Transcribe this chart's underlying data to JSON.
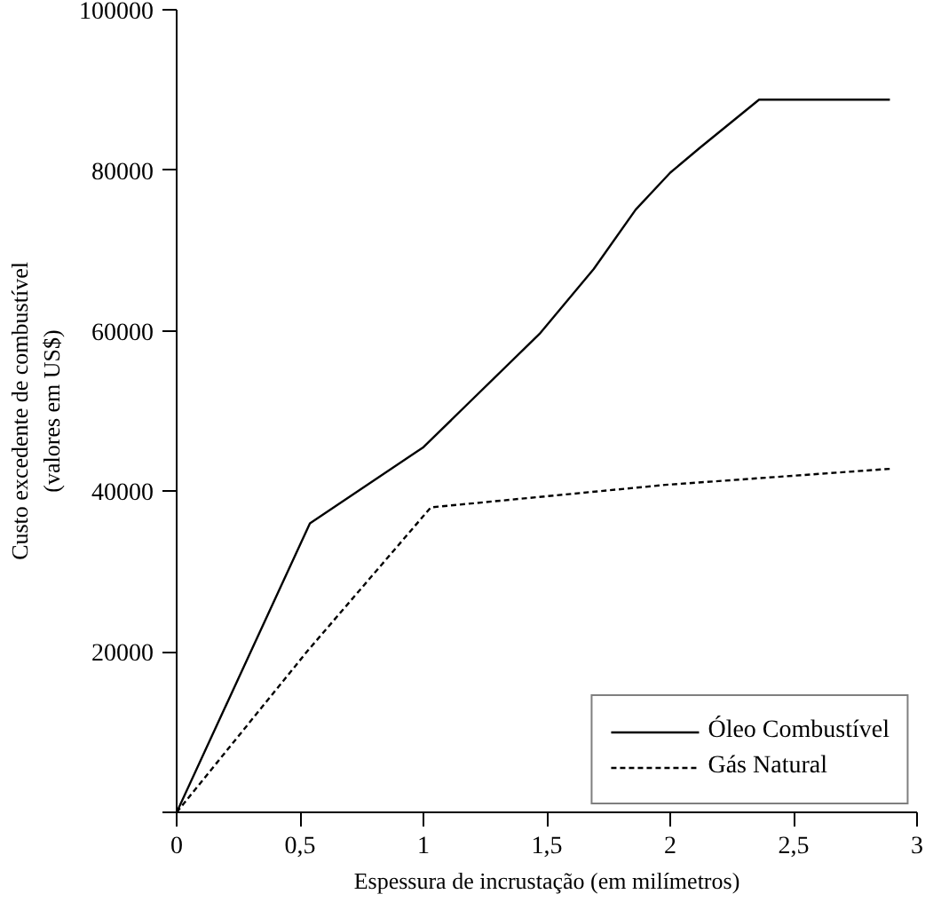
{
  "chart_data": {
    "type": "line",
    "xlabel": "Espessura de incrustação (em milímetros)",
    "ylabel": "Custo excedente de combustível\n(valores em US$)",
    "xlim": [
      0,
      3
    ],
    "ylim": [
      0,
      100000
    ],
    "xticks": [
      0,
      {
        "value": 0.5,
        "label": "0,5"
      },
      1,
      {
        "value": 1.5,
        "label": "1,5"
      },
      2,
      {
        "value": 2.5,
        "label": "2,5"
      },
      3
    ],
    "yticks": [
      {
        "value": 0,
        "label": null
      },
      20000,
      40000,
      60000,
      80000,
      100000
    ],
    "grid": false,
    "legend": "bottom right",
    "series": [
      {
        "name": "Óleo Combustível",
        "color": "#000000",
        "line_style": "solid",
        "x": [
          0,
          0.54,
          1.0,
          1.47,
          1.69,
          1.86,
          2.0,
          2.12,
          2.36,
          2.89
        ],
        "values": [
          0,
          36000,
          45500,
          59600,
          67700,
          75100,
          79700,
          82800,
          88800,
          88800
        ]
      },
      {
        "name": "Gás Natural",
        "color": "#000000",
        "line_style": "dashed",
        "x": [
          0,
          0.53,
          1.03,
          1.98,
          2.89
        ],
        "values": [
          0,
          20100,
          38000,
          40800,
          42800
        ]
      }
    ]
  }
}
